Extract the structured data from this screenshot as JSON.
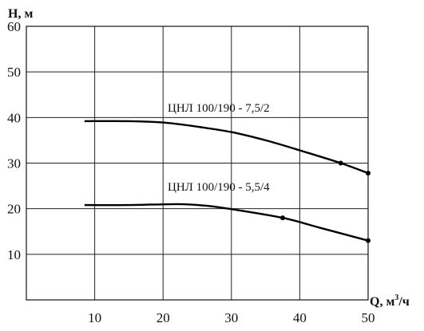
{
  "chart_data": {
    "type": "line",
    "ylabel": "H, м",
    "xlabel_main": "Q, м",
    "xlabel_sup": "3",
    "xlabel_tail": "/ч",
    "xlim": [
      0,
      50
    ],
    "ylim": [
      0,
      60
    ],
    "x_ticks": [
      10,
      20,
      30,
      40,
      50
    ],
    "y_ticks": [
      10,
      20,
      30,
      40,
      50,
      60
    ],
    "grid": true,
    "series": [
      {
        "name": "ЦНЛ 100/190 - 7,5/2",
        "points": [
          [
            8.5,
            39.2
          ],
          [
            15,
            39.2
          ],
          [
            20,
            38.9
          ],
          [
            25,
            38.0
          ],
          [
            30,
            36.8
          ],
          [
            35,
            35.0
          ],
          [
            40,
            32.8
          ],
          [
            46,
            30.0
          ],
          [
            50,
            27.8
          ]
        ],
        "markers": [
          [
            46,
            30.0
          ],
          [
            50,
            27.8
          ]
        ]
      },
      {
        "name": "ЦНЛ 100/190 - 5,5/4",
        "points": [
          [
            8.5,
            20.8
          ],
          [
            15,
            20.8
          ],
          [
            22,
            21.0
          ],
          [
            26,
            20.7
          ],
          [
            30,
            19.9
          ],
          [
            37.5,
            18.0
          ],
          [
            43,
            15.8
          ],
          [
            50,
            13.0
          ]
        ],
        "markers": [
          [
            37.5,
            18.0
          ],
          [
            50,
            13.0
          ]
        ]
      }
    ]
  }
}
